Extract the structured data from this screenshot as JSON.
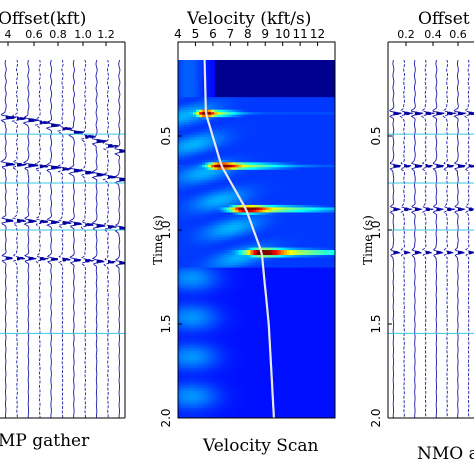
{
  "chart_data": [
    {
      "panel": "left",
      "type": "wiggle",
      "title": "Offset(kft)",
      "caption": "MP gather",
      "x_ticks": [
        "4",
        "0.6",
        "0.8",
        "1.0",
        "1.2"
      ],
      "events_s": [
        0.4,
        0.65,
        0.95,
        1.15
      ],
      "horizontal_marks_s": [
        0.49,
        0.75,
        1.0,
        1.55
      ]
    },
    {
      "panel": "center",
      "type": "heatmap",
      "title": "Velocity (kft/s)",
      "caption": "Velocity Scan",
      "xlabel": "",
      "ylabel": "Time (s)",
      "x_ticks": [
        "4",
        "5",
        "6",
        "7",
        "8",
        "9",
        "10",
        "11",
        "12"
      ],
      "x_tick_values": [
        4,
        5,
        6,
        7,
        8,
        9,
        10,
        11,
        12
      ],
      "y_ticks": [
        "0.5",
        "1.0",
        "1.5",
        "2.0"
      ],
      "y_tick_values": [
        0.5,
        1.0,
        1.5,
        2.0
      ],
      "xlim": [
        4,
        13
      ],
      "ylim": [
        0,
        2.0
      ],
      "semblance_peaks": [
        {
          "t": 0.38,
          "v": 5.6,
          "width": 1.2
        },
        {
          "t": 0.66,
          "v": 6.5,
          "width": 2.3
        },
        {
          "t": 0.89,
          "v": 7.9,
          "width": 3.0
        },
        {
          "t": 1.12,
          "v": 8.8,
          "width": 3.5
        }
      ],
      "velocity_curve": {
        "t": [
          0.0,
          0.38,
          0.66,
          0.89,
          1.12,
          1.5,
          2.0
        ],
        "v": [
          5.5,
          5.6,
          6.5,
          7.9,
          8.8,
          9.2,
          9.5
        ]
      },
      "colormap": "jet"
    },
    {
      "panel": "right",
      "type": "wiggle",
      "title": "Offset",
      "caption": "NMO a",
      "ylabel": "Time (s)",
      "x_ticks": [
        "0.2",
        "0.4",
        "0.6"
      ],
      "y_ticks": [
        "0.5",
        "1.0",
        "1.5",
        "2.0"
      ],
      "events_s": [
        0.38,
        0.66,
        0.89,
        1.12
      ]
    }
  ]
}
